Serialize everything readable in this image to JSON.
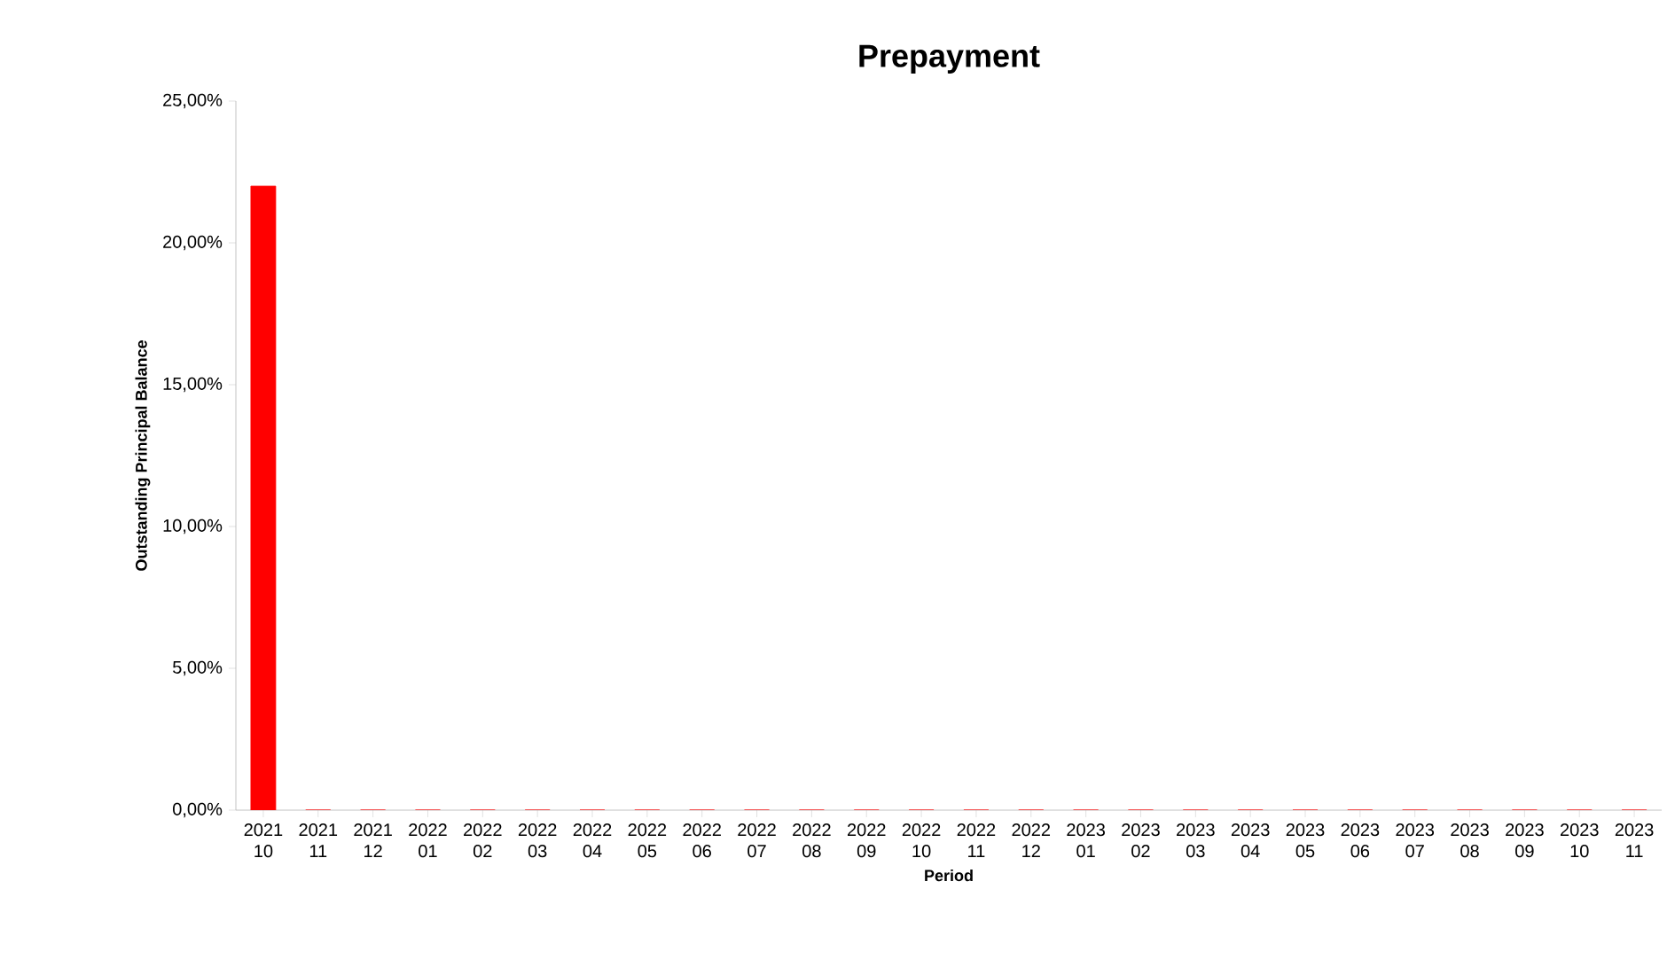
{
  "chart_data": {
    "type": "bar",
    "title": "Prepayment",
    "xlabel": "Period",
    "ylabel": "Outstanding Principal Balance",
    "categories": [
      "2021 10",
      "2021 11",
      "2021 12",
      "2022 01",
      "2022 02",
      "2022 03",
      "2022 04",
      "2022 05",
      "2022 06",
      "2022 07",
      "2022 08",
      "2022 09",
      "2022 10",
      "2022 11",
      "2022 12",
      "2023 01",
      "2023 02",
      "2023 03",
      "2023 04",
      "2023 05",
      "2023 06",
      "2023 07",
      "2023 08",
      "2023 09",
      "2023 10",
      "2023 11"
    ],
    "values": [
      22,
      0,
      0,
      0,
      0,
      0,
      0,
      0,
      0,
      0,
      0,
      0,
      0,
      0,
      0,
      0,
      0,
      0,
      0,
      0,
      0,
      0,
      0,
      0,
      0,
      0
    ],
    "color": "#ff0000",
    "ylim": [
      0,
      25
    ],
    "yticks": [
      {
        "value": 0,
        "label": "0,00%"
      },
      {
        "value": 5,
        "label": "5,00%"
      },
      {
        "value": 10,
        "label": "10,00%"
      },
      {
        "value": 15,
        "label": "15,00%"
      },
      {
        "value": 20,
        "label": "20,00%"
      },
      {
        "value": 25,
        "label": "25,00%"
      }
    ],
    "grid": false
  }
}
